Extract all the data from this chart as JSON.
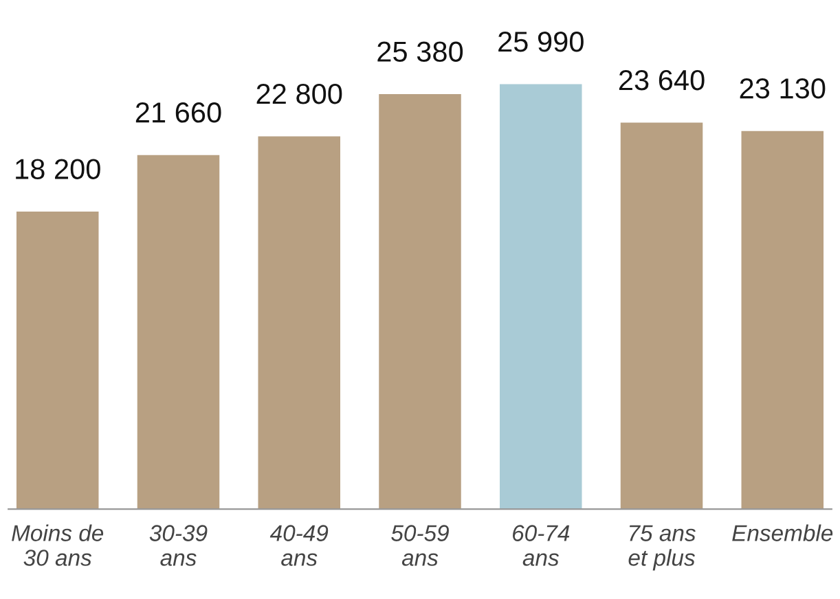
{
  "chart_data": {
    "type": "bar",
    "categories": [
      "Moins de\n30 ans",
      "30-39\nans",
      "40-49\nans",
      "50-59\nans",
      "60-74\nans",
      "75 ans\net plus",
      "Ensemble"
    ],
    "values": [
      18200,
      21660,
      22800,
      25380,
      25990,
      23640,
      23130
    ],
    "value_labels": [
      "18 200",
      "21 660",
      "22 800",
      "25 380",
      "25 990",
      "23 640",
      "23 130"
    ],
    "colors": [
      "#b8a082",
      "#b8a082",
      "#b8a082",
      "#b8a082",
      "#a9cbd6",
      "#b8a082",
      "#b8a082"
    ],
    "grid": false,
    "legend": false
  }
}
